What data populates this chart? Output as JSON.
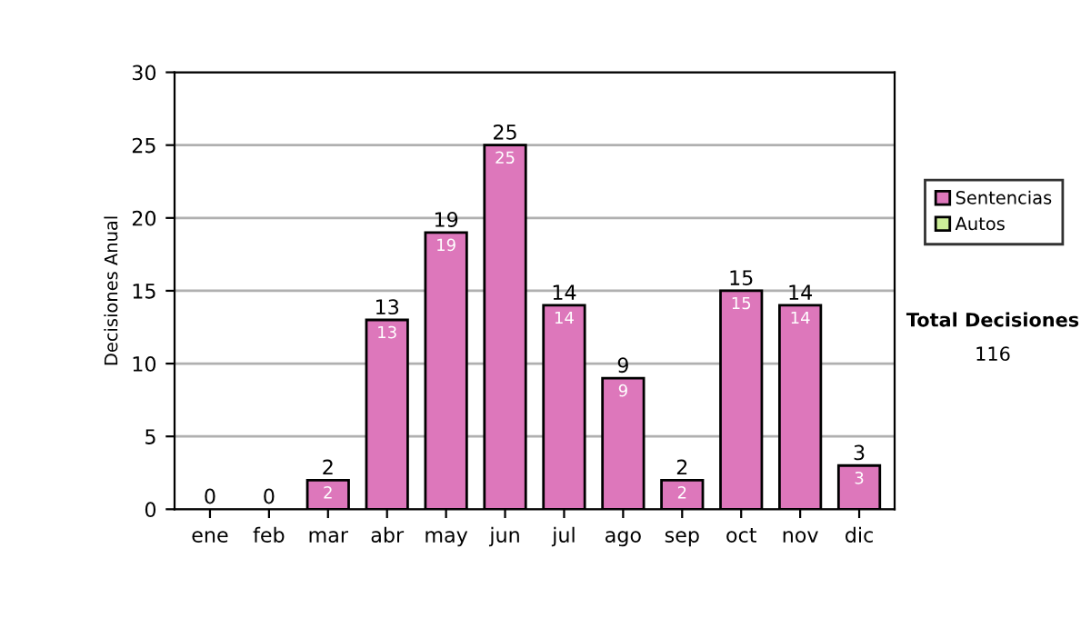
{
  "chart_data": {
    "type": "bar",
    "stacked": true,
    "ylabel": "Decisiones Anual",
    "categories": [
      "ene",
      "feb",
      "mar",
      "abr",
      "may",
      "jun",
      "jul",
      "ago",
      "sep",
      "oct",
      "nov",
      "dic"
    ],
    "series": [
      {
        "name": "Sentencias",
        "color": "#dd77bb",
        "values": [
          0,
          0,
          2,
          13,
          19,
          25,
          14,
          9,
          2,
          15,
          14,
          3
        ],
        "value_labels": [
          null,
          null,
          "2",
          "13",
          "19",
          "25",
          "14",
          "9",
          "2",
          "15",
          "14",
          "3"
        ]
      },
      {
        "name": "Autos",
        "color": "#ccee99",
        "values": [
          0,
          0,
          0,
          0,
          0,
          0,
          0,
          0,
          0,
          0,
          0,
          0
        ]
      }
    ],
    "totals": [
      "0",
      "0",
      "2",
      "13",
      "19",
      "25",
      "14",
      "9",
      "2",
      "15",
      "14",
      "3"
    ],
    "ylim": [
      0,
      30
    ],
    "yticks": [
      0,
      5,
      10,
      15,
      20,
      25,
      30
    ],
    "grid": "y",
    "legend": "right",
    "annotations": [
      "Total Decisiones",
      "116"
    ]
  }
}
